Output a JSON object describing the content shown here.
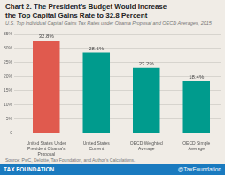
{
  "chart_data": {
    "type": "bar",
    "title": "Chart 2. The President’s Budget Would Increase\nthe Top Capital Gains Rate to 32.8 Percent",
    "subtitle": "U.S. Top Individual Capital Gains Tax Rates under Obama Proposal and OECD Averages, 2015",
    "categories": [
      "United States Under\nPresident Obama's Proposal",
      "United States\nCurrent",
      "OECD Weighted\nAverage",
      "OECD Simple\nAverage"
    ],
    "values": [
      32.8,
      28.6,
      23.2,
      18.4
    ],
    "value_labels": [
      "32.8%",
      "28.6%",
      "23.2%",
      "18.4%"
    ],
    "data_labels": true,
    "colors": [
      "#e05a4e",
      "#009b8d",
      "#009b8d",
      "#009b8d"
    ],
    "ylim": [
      0,
      35
    ],
    "yticks": [
      0,
      {
        "value": 5,
        "label": "5%"
      },
      {
        "value": 10,
        "label": "10%"
      },
      {
        "value": 15,
        "label": "15%"
      },
      {
        "value": 20,
        "label": "20%"
      },
      {
        "value": 25,
        "label": "25%"
      },
      {
        "value": 30,
        "label": "30%"
      },
      {
        "value": 35,
        "label": "35%"
      }
    ],
    "grid": true,
    "annotations": [
      "Source: PwC, Deloitte, Tax Foundation, and Author’s Calculations.",
      "TAX FOUNDATION",
      "@TaxFoundation"
    ]
  }
}
